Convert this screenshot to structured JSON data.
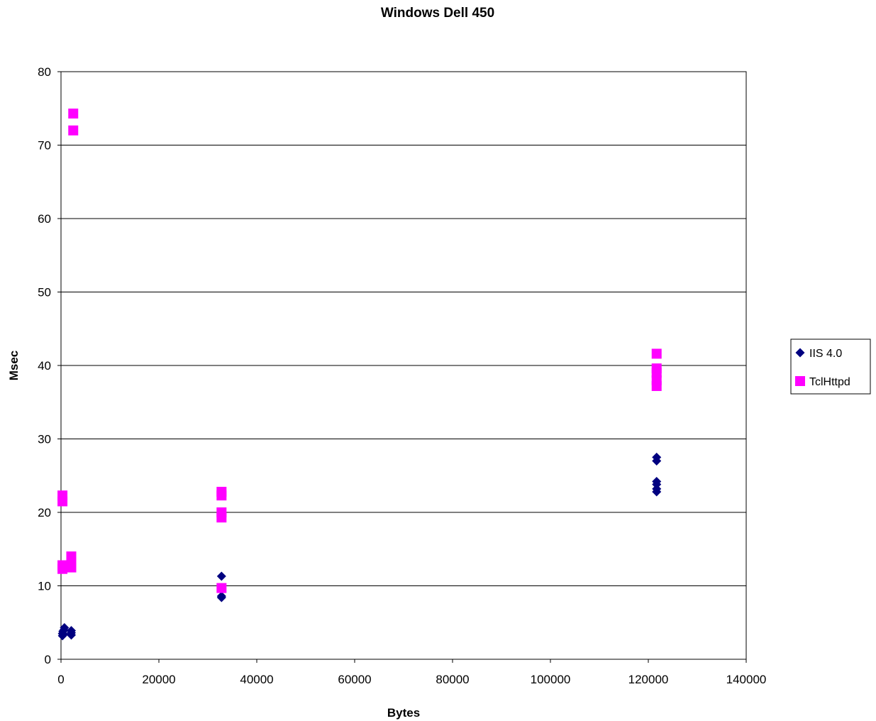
{
  "chart_data": {
    "type": "scatter",
    "title": "Windows Dell 450",
    "xlabel": "Bytes",
    "ylabel": "Msec",
    "xlim": [
      0,
      140000
    ],
    "ylim": [
      0,
      80
    ],
    "x_ticks": [
      "0",
      "20000",
      "40000",
      "60000",
      "80000",
      "100000",
      "120000",
      "140000"
    ],
    "y_ticks": [
      "0",
      "10",
      "20",
      "30",
      "40",
      "50",
      "60",
      "70",
      "80"
    ],
    "grid": "horizontal",
    "legend_position": "right",
    "series": [
      {
        "name": "IIS 4.0",
        "color": "#000080",
        "marker": "diamond",
        "points": [
          [
            300,
            3.2
          ],
          [
            300,
            3.5
          ],
          [
            400,
            3.8
          ],
          [
            500,
            3.4
          ],
          [
            600,
            4.0
          ],
          [
            700,
            4.3
          ],
          [
            2100,
            3.3
          ],
          [
            2100,
            3.6
          ],
          [
            2100,
            3.9
          ],
          [
            32800,
            8.4
          ],
          [
            32800,
            8.6
          ],
          [
            32800,
            9.5
          ],
          [
            32800,
            11.3
          ],
          [
            121700,
            22.8
          ],
          [
            121700,
            23.2
          ],
          [
            121700,
            23.8
          ],
          [
            121700,
            24.2
          ],
          [
            121700,
            27.0
          ],
          [
            121700,
            27.5
          ]
        ]
      },
      {
        "name": "TclHttpd",
        "color": "#FF00FF",
        "marker": "square",
        "points": [
          [
            300,
            12.3
          ],
          [
            300,
            12.8
          ],
          [
            300,
            21.5
          ],
          [
            300,
            22.3
          ],
          [
            2100,
            12.5
          ],
          [
            2100,
            13.2
          ],
          [
            2100,
            14.0
          ],
          [
            2500,
            72.0
          ],
          [
            2500,
            74.3
          ],
          [
            32800,
            9.7
          ],
          [
            32800,
            19.3
          ],
          [
            32800,
            20.0
          ],
          [
            32800,
            22.3
          ],
          [
            32800,
            22.8
          ],
          [
            121700,
            37.2
          ],
          [
            121700,
            38.0
          ],
          [
            121700,
            39.0
          ],
          [
            121700,
            39.6
          ],
          [
            121700,
            41.6
          ]
        ]
      }
    ]
  }
}
